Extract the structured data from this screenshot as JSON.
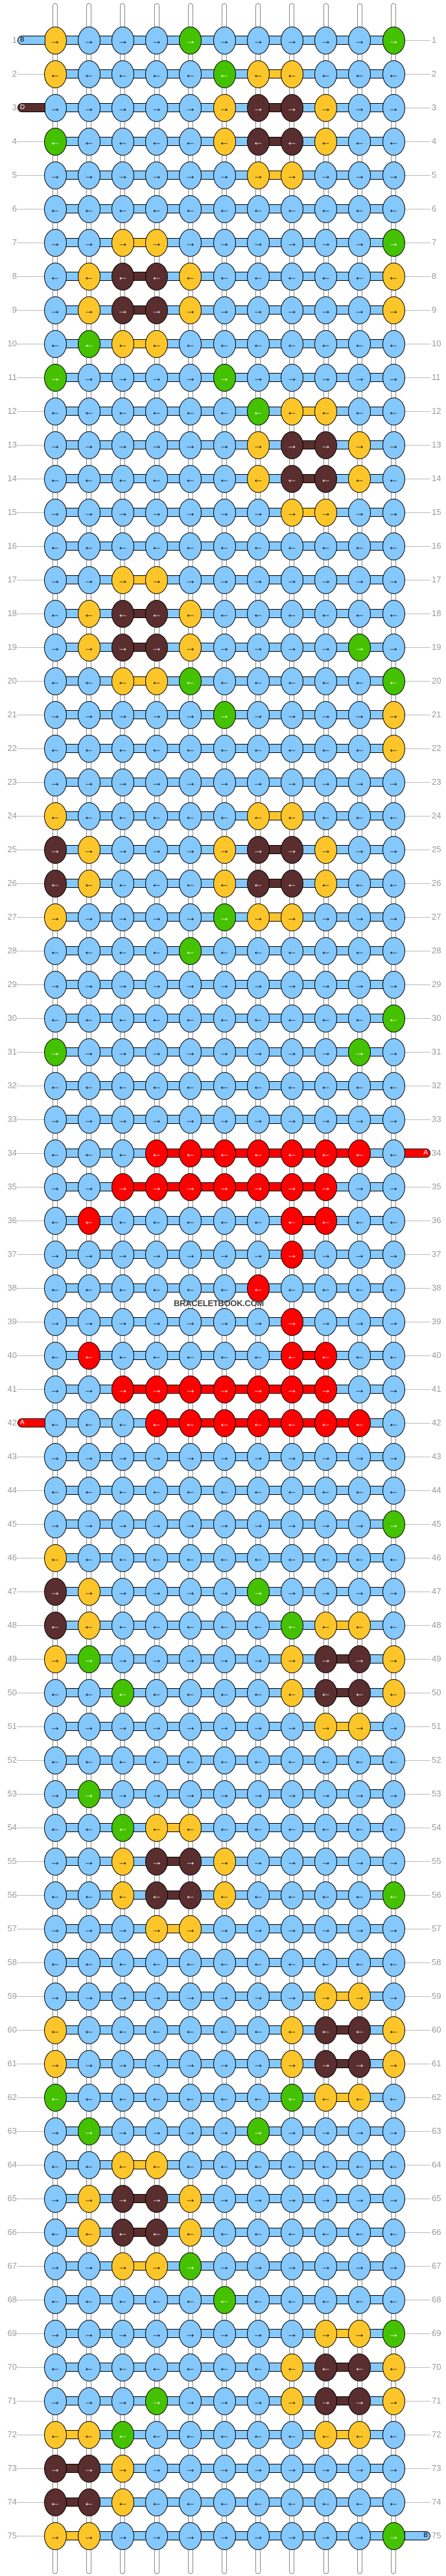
{
  "watermark": "BRACELETBOOK.COM",
  "colors": {
    "B": "#85c8fb",
    "Y": "#fcc62a",
    "G": "#44c200",
    "D": "#5a2e2e",
    "R": "#ff0000"
  },
  "arrow_icons": {
    "R": "→",
    "L": "←"
  },
  "strand_labels": [
    {
      "side": "left",
      "row": 1,
      "letter": "B",
      "color": "B"
    },
    {
      "side": "left",
      "row": 3,
      "letter": "D",
      "color": "D"
    },
    {
      "side": "left",
      "row": 42,
      "letter": "A",
      "color": "R"
    },
    {
      "side": "right",
      "row": 34,
      "letter": "A",
      "color": "R"
    },
    {
      "side": "right",
      "row": 75,
      "letter": "B",
      "color": "B"
    }
  ],
  "directions": "RLRLRLRLRLRLRLRLRLRLRLRLRLRLRLRLRLRLRLRLRLRLRLRLRLRLRLRLRLRLRLRLRLRLRLRLRLR",
  "knots": [
    "YBBBGBBBBBG",
    "YBBBBGYYBBB",
    "BBBBBYDDYBB",
    "GBBBBYDDYBB",
    "BBBBBBYYBBB",
    "BBBBBBBBBBB",
    "BBYYBBBBBBG",
    "BYDDYBBBBBY",
    "BYDDYBBBBBY",
    "BGYYBBBBBBB",
    "GBBBBGBBBBB",
    "BBBBBBGYYBB",
    "BBBBBBYDDYB",
    "BBBBBBYDDYB",
    "BBBBBBBYYBB",
    "BBBBBBBBBBB",
    "BBYYBBBBBBB",
    "BYDDYBBBBBB",
    "BYDDYBBBBGB",
    "BBYYGBBBBBG",
    "BBBBBGBBBBY",
    "BBBBBBBBBBY",
    "BBBBBBBBBBB",
    "YBBBBBYYBBB",
    "DYBBBYDDYBB",
    "DYBBBYDDYBB",
    "YBBBBGYYBBB",
    "BBBBGBBBBBB",
    "BBBBBBBBBBB",
    "BBBBBBBBBBG",
    "GBBBBBBBBGB",
    "BBBBBBBBBBB",
    "BBBBBBBBBBB",
    "BBBRRRRRRRB",
    "BBRRRRRRRBB",
    "BRBBBBBRRBB",
    "BBBBBBBRBBB",
    "BBBBBBRBBBB",
    "BBBBBBBRBBB",
    "BRBBBBBRRBB",
    "BBRRRRRRRBB",
    "BBBRRRRRRRB",
    "BBBBBBBBBBB",
    "BBBBBBBBBBB",
    "BBBBBBBBBBG",
    "YBBBBBBBBBB",
    "DYBBBBGBBBB",
    "DYBBBBBGYYB",
    "YGBBBBBYDDY",
    "BBGBBBBYDDY",
    "BBBBBBBBYYB",
    "BBBBBBBBBBB",
    "BGBBBBBBBBB",
    "BBGYYBBBBBB",
    "BBYDDYBBBBB",
    "BBYDDYBBBBG",
    "BBBYYBBBBBB",
    "BBBBBBBBBBB",
    "BBBBBBBBYYB",
    "YBBBBBBYDDY",
    "YBBBBBBYDDY",
    "GBBBBBBGYYB",
    "BGBBBBGBBBB",
    "BBYYBBBBBBB",
    "BYDDYBBBBBB",
    "BYDDYBBBBBB",
    "BBYYGBBBBBB",
    "BBBBBGBBBBB",
    "BBBBBBBBYYG",
    "BBBBBBBYDDY",
    "BBBGBBBYDDY",
    "YYGBBBBBYYB",
    "DDYBBBBBBBB",
    "DDYBBBBBBBB",
    "YYBBBBBBBBG"
  ]
}
